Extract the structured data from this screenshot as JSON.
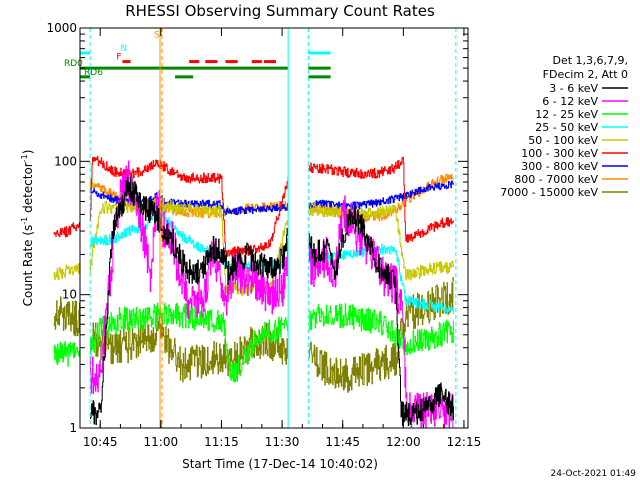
{
  "chart_data": {
    "type": "line",
    "title": "RHESSI Observing Summary Count Rates",
    "xlabel": "Start Time (17-Dec-14 10:40:02)",
    "ylabel_main": "Count Rate (s",
    "ylabel_sup1": "-1",
    "ylabel_mid": " detector",
    "ylabel_sup2": "-1",
    "ylabel_end": ")",
    "y_scale": "log",
    "ylim": [
      1,
      1000
    ],
    "xlim_minutes": [
      0,
      96
    ],
    "x_ticks": [
      {
        "minute": 5,
        "label": "10:45"
      },
      {
        "minute": 20,
        "label": "11:00"
      },
      {
        "minute": 35,
        "label": "11:15"
      },
      {
        "minute": 50,
        "label": "11:30"
      },
      {
        "minute": 65,
        "label": "11:45"
      },
      {
        "minute": 80,
        "label": "12:00"
      },
      {
        "minute": 95,
        "label": "12:15"
      }
    ],
    "y_ticks": [
      {
        "value": 1,
        "label": "1"
      },
      {
        "value": 10,
        "label": "10"
      },
      {
        "value": 100,
        "label": "100"
      },
      {
        "value": 1000,
        "label": "1000"
      }
    ],
    "legend_header": [
      "Det 1,3,6,7,9,",
      "FDecim 2, Att 0"
    ],
    "legend_position": "right",
    "timestamp": "24-Oct-2021 01:49",
    "gaps": [
      [
        0,
        2.5
      ],
      [
        51.5,
        56.5
      ],
      [
        93,
        96
      ]
    ],
    "vertical_lines": [
      {
        "minute": 2.5,
        "color": "#00ffff",
        "style": "dashed"
      },
      {
        "minute": 51.5,
        "color": "#00ffff",
        "style": "solid"
      },
      {
        "minute": 56.5,
        "color": "#00ffff",
        "style": "dashed"
      },
      {
        "minute": 93,
        "color": "#00ffff",
        "style": "dashed"
      },
      {
        "minute": 19.8,
        "color": "#ff8c00",
        "style": "solid"
      },
      {
        "minute": 20.3,
        "color": "#ff8c00",
        "style": "dashed"
      }
    ],
    "flag_bars": [
      {
        "label": "N",
        "color": "#00ffff",
        "value": 650,
        "segments": [
          [
            -6.5,
            2.5
          ],
          [
            56.5,
            62
          ]
        ],
        "label_minute": 10
      },
      {
        "label": "F",
        "color": "#ff0000",
        "value": 560,
        "segments": [
          [
            10.5,
            12.5
          ],
          [
            27,
            29.5
          ],
          [
            31,
            34
          ],
          [
            36,
            39
          ],
          [
            42.5,
            45
          ],
          [
            45.5,
            48.5
          ]
        ],
        "label_minute": 9
      },
      {
        "label": "RD0",
        "color": "#008800",
        "value": 500,
        "segments": [
          [
            -6.5,
            51.5
          ],
          [
            56.5,
            62
          ]
        ],
        "label_minute": -4
      },
      {
        "label": "RD6",
        "color": "#008800",
        "value": 430,
        "segments": [
          [
            -6.5,
            2.5
          ],
          [
            23.5,
            28
          ],
          [
            56.5,
            62
          ]
        ],
        "label_minute": 1
      },
      {
        "label": "S",
        "color": "#ff8c00",
        "value": 850,
        "segments": [],
        "label_minute": 18.3
      }
    ],
    "series": [
      {
        "name": "3 - 6 keV",
        "color": "#000000",
        "noise": 0.1,
        "points": [
          [
            2.5,
            1.3
          ],
          [
            5,
            1.3
          ],
          [
            8,
            30
          ],
          [
            12,
            65
          ],
          [
            16,
            45
          ],
          [
            19,
            38
          ],
          [
            21,
            28
          ],
          [
            23,
            25
          ],
          [
            25,
            18
          ],
          [
            27,
            15
          ],
          [
            30,
            15
          ],
          [
            33,
            22
          ],
          [
            35.5,
            20
          ],
          [
            36.5,
            14
          ],
          [
            38,
            16
          ],
          [
            41,
            20
          ],
          [
            44,
            17
          ],
          [
            47,
            16
          ],
          [
            50,
            18
          ],
          [
            52,
            32
          ],
          [
            55,
            30
          ],
          [
            58,
            20
          ],
          [
            61,
            22
          ],
          [
            63,
            14
          ],
          [
            65,
            28
          ],
          [
            67,
            40
          ],
          [
            70,
            32
          ],
          [
            73,
            18
          ],
          [
            76,
            14
          ],
          [
            78,
            12
          ],
          [
            79.5,
            1.3
          ],
          [
            83,
            1.3
          ],
          [
            86,
            1.5
          ],
          [
            89,
            1.8
          ],
          [
            92.5,
            1.4
          ]
        ]
      },
      {
        "name": "6 - 12 keV",
        "color": "#ff00ff",
        "noise": 0.16,
        "points": [
          [
            2.5,
            2.5
          ],
          [
            5,
            2.5
          ],
          [
            8,
            20
          ],
          [
            10,
            60
          ],
          [
            12,
            72
          ],
          [
            14,
            45
          ],
          [
            16,
            25
          ],
          [
            17.5,
            14
          ],
          [
            19,
            50
          ],
          [
            21,
            28
          ],
          [
            23,
            25
          ],
          [
            25,
            12
          ],
          [
            27,
            9
          ],
          [
            30,
            9
          ],
          [
            33,
            20
          ],
          [
            35.5,
            10
          ],
          [
            36.5,
            10
          ],
          [
            38,
            15
          ],
          [
            41,
            14
          ],
          [
            44,
            12
          ],
          [
            47,
            10
          ],
          [
            50,
            11
          ],
          [
            52,
            25
          ],
          [
            55,
            22
          ],
          [
            58,
            15
          ],
          [
            61,
            20
          ],
          [
            63,
            14
          ],
          [
            65,
            40
          ],
          [
            67,
            35
          ],
          [
            70,
            25
          ],
          [
            73,
            18
          ],
          [
            76,
            12
          ],
          [
            78,
            12
          ],
          [
            79.5,
            8
          ],
          [
            81,
            1.3
          ],
          [
            84,
            1.3
          ],
          [
            89,
            1.3
          ],
          [
            92.5,
            1.3
          ]
        ]
      },
      {
        "name": "12 - 25 keV",
        "color": "#00ff00",
        "noise": 0.1,
        "points": [
          [
            -6.5,
            3.5
          ],
          [
            2.5,
            3.8
          ],
          [
            5,
            5.5
          ],
          [
            10,
            6.5
          ],
          [
            15,
            6.5
          ],
          [
            20,
            7
          ],
          [
            25,
            7
          ],
          [
            30,
            6.5
          ],
          [
            33,
            6.5
          ],
          [
            35.5,
            6.5
          ],
          [
            36.5,
            3
          ],
          [
            38,
            2.5
          ],
          [
            41,
            3.5
          ],
          [
            44,
            5
          ],
          [
            50,
            5.5
          ],
          [
            55,
            6.5
          ],
          [
            60,
            7
          ],
          [
            65,
            7
          ],
          [
            70,
            6.5
          ],
          [
            75,
            6
          ],
          [
            78,
            5
          ],
          [
            80.5,
            4.2
          ],
          [
            85,
            4.5
          ],
          [
            89,
            5
          ],
          [
            92.5,
            5.5
          ]
        ]
      },
      {
        "name": "25 - 50 keV",
        "color": "#00ffff",
        "noise": 0.04,
        "points": [
          [
            2.5,
            25
          ],
          [
            8,
            26
          ],
          [
            12,
            30
          ],
          [
            16,
            32
          ],
          [
            19,
            45
          ],
          [
            21,
            38
          ],
          [
            25,
            28
          ],
          [
            30,
            22
          ],
          [
            35,
            19
          ],
          [
            36,
            17
          ],
          [
            42,
            16
          ],
          [
            50,
            17
          ],
          [
            55,
            18
          ],
          [
            60,
            19
          ],
          [
            65,
            20
          ],
          [
            70,
            21
          ],
          [
            75,
            22
          ],
          [
            78,
            22
          ],
          [
            80.5,
            9
          ],
          [
            85,
            8.5
          ],
          [
            89,
            8
          ],
          [
            92.5,
            7.5
          ]
        ]
      },
      {
        "name": "50 - 100 keV",
        "color": "#c8c800",
        "noise": 0.05,
        "points": [
          [
            -6.5,
            14
          ],
          [
            -3,
            15
          ],
          [
            0.5,
            16
          ],
          [
            2.5,
            16
          ],
          [
            5,
            45
          ],
          [
            10,
            45
          ],
          [
            15,
            46
          ],
          [
            20,
            48
          ],
          [
            25,
            44
          ],
          [
            30,
            42
          ],
          [
            35,
            42
          ],
          [
            36,
            11
          ],
          [
            40,
            11
          ],
          [
            44,
            12
          ],
          [
            47,
            11
          ],
          [
            52,
            44
          ],
          [
            56,
            44
          ],
          [
            60,
            43
          ],
          [
            65,
            41
          ],
          [
            70,
            40
          ],
          [
            74,
            41
          ],
          [
            78,
            44
          ],
          [
            80.5,
            14
          ],
          [
            85,
            15
          ],
          [
            89,
            16
          ],
          [
            92.5,
            16
          ]
        ]
      },
      {
        "name": "100 - 300 keV",
        "color": "#ff0000",
        "noise": 0.04,
        "points": [
          [
            -6.5,
            28
          ],
          [
            -3,
            30
          ],
          [
            0,
            34
          ],
          [
            2.5,
            35
          ],
          [
            3,
            100
          ],
          [
            5,
            100
          ],
          [
            8,
            85
          ],
          [
            12,
            80
          ],
          [
            16,
            85
          ],
          [
            19,
            100
          ],
          [
            21,
            90
          ],
          [
            25,
            75
          ],
          [
            30,
            75
          ],
          [
            35,
            75
          ],
          [
            36,
            21
          ],
          [
            40,
            21
          ],
          [
            44,
            22
          ],
          [
            47,
            24
          ],
          [
            52,
            85
          ],
          [
            56,
            90
          ],
          [
            60,
            88
          ],
          [
            65,
            84
          ],
          [
            70,
            80
          ],
          [
            74,
            82
          ],
          [
            78,
            90
          ],
          [
            80,
            100
          ],
          [
            80.5,
            26
          ],
          [
            85,
            30
          ],
          [
            89,
            34
          ],
          [
            92.5,
            36
          ]
        ]
      },
      {
        "name": "300 - 800 keV",
        "color": "#0000ff",
        "noise": 0.03,
        "points": [
          [
            2.5,
            60
          ],
          [
            6,
            55
          ],
          [
            10,
            50
          ],
          [
            14,
            48
          ],
          [
            17,
            50
          ],
          [
            19,
            55
          ],
          [
            21,
            50
          ],
          [
            25,
            48
          ],
          [
            30,
            48
          ],
          [
            35,
            48
          ],
          [
            36,
            42
          ],
          [
            42,
            43
          ],
          [
            50,
            45
          ],
          [
            55,
            47
          ],
          [
            60,
            48
          ],
          [
            65,
            46
          ],
          [
            70,
            47
          ],
          [
            75,
            50
          ],
          [
            80.5,
            55
          ],
          [
            85,
            62
          ],
          [
            89,
            65
          ],
          [
            92.5,
            68
          ]
        ]
      },
      {
        "name": "800 - 7000 keV",
        "color": "#ff8c00",
        "noise": 0.04,
        "points": [
          [
            2.5,
            68
          ],
          [
            6,
            60
          ],
          [
            10,
            52
          ],
          [
            14,
            45
          ],
          [
            17,
            44
          ],
          [
            19,
            45
          ],
          [
            21,
            44
          ],
          [
            25,
            42
          ],
          [
            30,
            41
          ],
          [
            35,
            42
          ],
          [
            38,
            43
          ],
          [
            42,
            44
          ],
          [
            48,
            46
          ],
          [
            54,
            46
          ],
          [
            60,
            44
          ],
          [
            66,
            40
          ],
          [
            72,
            38
          ],
          [
            76,
            40
          ],
          [
            80.5,
            50
          ],
          [
            85,
            62
          ],
          [
            89,
            72
          ],
          [
            92.5,
            75
          ]
        ]
      },
      {
        "name": "7000 - 15000 keV",
        "color": "#808000",
        "noise": 0.14,
        "points": [
          [
            -6.5,
            7.5
          ],
          [
            -3,
            7
          ],
          [
            0,
            6.5
          ],
          [
            2.5,
            5
          ],
          [
            5,
            4.2
          ],
          [
            8,
            4
          ],
          [
            12,
            4.2
          ],
          [
            15,
            4.5
          ],
          [
            18,
            4.5
          ],
          [
            20,
            5.5
          ],
          [
            22,
            4
          ],
          [
            25,
            3
          ],
          [
            30,
            3.2
          ],
          [
            35,
            3.5
          ],
          [
            38,
            3.2
          ],
          [
            42,
            4.2
          ],
          [
            46,
            4.5
          ],
          [
            50,
            4
          ],
          [
            54,
            3.8
          ],
          [
            58,
            3.3
          ],
          [
            62,
            2.6
          ],
          [
            66,
            2.5
          ],
          [
            70,
            2.7
          ],
          [
            74,
            3
          ],
          [
            78,
            3.2
          ],
          [
            80.5,
            7
          ],
          [
            85,
            8
          ],
          [
            89,
            9
          ],
          [
            92.5,
            10
          ]
        ]
      }
    ]
  }
}
